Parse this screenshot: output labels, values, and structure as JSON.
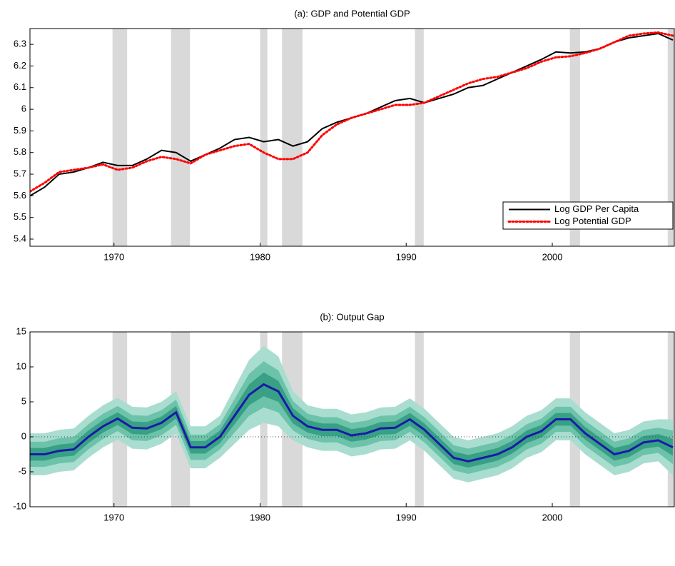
{
  "chart_data": [
    {
      "type": "line",
      "title": "(a): GDP and Potential GDP",
      "x": [
        1964.25,
        1965.25,
        1966.25,
        1967.25,
        1968.25,
        1969.25,
        1970.25,
        1971.25,
        1972.25,
        1973.25,
        1974.25,
        1975.25,
        1976.25,
        1977.25,
        1978.25,
        1979.25,
        1980.25,
        1981.25,
        1982.25,
        1983.25,
        1984.25,
        1985.25,
        1986.25,
        1987.25,
        1988.25,
        1989.25,
        1990.25,
        1991.25,
        1992.25,
        1993.25,
        1994.25,
        1995.25,
        1996.25,
        1997.25,
        1998.25,
        1999.25,
        2000.25,
        2001.25,
        2002.25,
        2003.25,
        2004.25,
        2005.25,
        2006.25,
        2007.25,
        2008.25
      ],
      "series": [
        {
          "name": "Log GDP Per Capita",
          "color": "#000000",
          "style": "solid",
          "values": [
            5.6,
            5.64,
            5.7,
            5.71,
            5.73,
            5.755,
            5.74,
            5.74,
            5.77,
            5.81,
            5.8,
            5.76,
            5.79,
            5.82,
            5.86,
            5.87,
            5.85,
            5.86,
            5.83,
            5.85,
            5.91,
            5.94,
            5.96,
            5.98,
            6.01,
            6.04,
            6.05,
            6.03,
            6.05,
            6.07,
            6.1,
            6.11,
            6.14,
            6.17,
            6.2,
            6.23,
            6.265,
            6.26,
            6.265,
            6.28,
            6.31,
            6.33,
            6.34,
            6.35,
            6.32
          ]
        },
        {
          "name": "Log Potential GDP",
          "color": "#ff0000",
          "style": "dotted",
          "values": [
            5.62,
            5.66,
            5.71,
            5.72,
            5.73,
            5.745,
            5.72,
            5.73,
            5.76,
            5.78,
            5.77,
            5.75,
            5.79,
            5.81,
            5.83,
            5.84,
            5.8,
            5.77,
            5.77,
            5.8,
            5.88,
            5.93,
            5.96,
            5.98,
            6.0,
            6.02,
            6.02,
            6.03,
            6.06,
            6.09,
            6.12,
            6.14,
            6.15,
            6.17,
            6.19,
            6.22,
            6.24,
            6.245,
            6.26,
            6.28,
            6.31,
            6.34,
            6.35,
            6.355,
            6.34
          ]
        }
      ],
      "recessions": [
        [
          1969.9,
          1970.9
        ],
        [
          1973.9,
          1975.2
        ],
        [
          1980.0,
          1980.5
        ],
        [
          1981.5,
          1982.9
        ],
        [
          1990.6,
          1991.2
        ],
        [
          2001.2,
          2001.9
        ],
        [
          2007.9,
          2009.5
        ]
      ],
      "recession_color": "#d9d9d9",
      "xlim": [
        1964.25,
        2008.35
      ],
      "xticks": [
        1970,
        1980,
        1990,
        2000
      ],
      "ylim": [
        5.367,
        6.373
      ],
      "yticks": [
        5.4,
        5.5,
        5.6,
        5.7,
        5.8,
        5.9,
        6,
        6.1,
        6.2,
        6.3
      ],
      "legend": "lower right"
    },
    {
      "type": "fan",
      "title": "(b): Output Gap",
      "x": [
        1964.25,
        1965.25,
        1966.25,
        1967.25,
        1968.25,
        1969.25,
        1970.25,
        1971.25,
        1972.25,
        1973.25,
        1974.25,
        1975.25,
        1976.25,
        1977.25,
        1978.25,
        1979.25,
        1980.25,
        1981.25,
        1982.25,
        1983.25,
        1984.25,
        1985.25,
        1986.25,
        1987.25,
        1988.25,
        1989.25,
        1990.25,
        1991.25,
        1992.25,
        1993.25,
        1994.25,
        1995.25,
        1996.25,
        1997.25,
        1998.25,
        1999.25,
        2000.25,
        2001.25,
        2002.25,
        2003.25,
        2004.25,
        2005.25,
        2006.25,
        2007.25,
        2008.25
      ],
      "bands": [
        {
          "color": "#a9ddd0",
          "lower": [
            -5.5,
            -5.5,
            -5.0,
            -4.8,
            -3.0,
            -1.5,
            -0.4,
            -1.7,
            -1.8,
            -1.0,
            0.5,
            -4.5,
            -4.5,
            -3.0,
            -1.0,
            1.0,
            2.0,
            1.5,
            -0.5,
            -1.5,
            -2.0,
            -2.0,
            -2.8,
            -2.5,
            -1.8,
            -1.7,
            -0.5,
            -2.0,
            -4.0,
            -6.0,
            -6.5,
            -6.0,
            -5.5,
            -4.5,
            -3.0,
            -2.2,
            -0.5,
            -0.5,
            -2.5,
            -4.0,
            -5.5,
            -5.0,
            -3.8,
            -3.5,
            -5.5
          ],
          "upper": [
            0.5,
            0.5,
            1.0,
            1.2,
            3.0,
            4.5,
            5.6,
            4.3,
            4.2,
            5.0,
            6.5,
            1.5,
            1.5,
            3.0,
            7.0,
            11.0,
            13.0,
            11.5,
            6.5,
            4.5,
            4.0,
            4.0,
            3.2,
            3.5,
            4.2,
            4.3,
            5.5,
            4.0,
            2.0,
            0.0,
            -0.5,
            0.0,
            0.5,
            1.5,
            3.0,
            3.8,
            5.5,
            5.5,
            3.5,
            2.0,
            0.5,
            1.0,
            2.2,
            2.5,
            2.5
          ]
        },
        {
          "color": "#6cc3aa",
          "lower": [
            -4.3,
            -4.3,
            -3.8,
            -3.6,
            -1.8,
            -0.3,
            0.8,
            -0.5,
            -0.6,
            0.2,
            1.7,
            -3.3,
            -3.3,
            -1.8,
            0.6,
            3.0,
            4.2,
            3.5,
            0.9,
            -0.3,
            -0.8,
            -0.8,
            -1.6,
            -1.3,
            -0.6,
            -0.5,
            0.7,
            -0.8,
            -2.8,
            -4.8,
            -5.3,
            -4.8,
            -4.3,
            -3.3,
            -1.8,
            -1.0,
            0.7,
            0.7,
            -1.3,
            -2.8,
            -4.3,
            -3.8,
            -2.6,
            -2.3,
            -3.9
          ],
          "upper": [
            -0.7,
            -0.7,
            -0.2,
            0.0,
            1.8,
            3.3,
            4.4,
            3.1,
            3.0,
            3.8,
            5.3,
            0.3,
            0.3,
            1.8,
            5.4,
            9.0,
            10.8,
            9.5,
            5.1,
            3.3,
            2.8,
            2.8,
            2.0,
            2.3,
            3.0,
            3.1,
            4.3,
            2.8,
            0.8,
            -1.2,
            -1.7,
            -1.2,
            -0.7,
            0.3,
            1.8,
            2.6,
            4.3,
            4.3,
            2.3,
            0.8,
            -0.7,
            -0.2,
            1.0,
            1.3,
            0.9
          ]
        },
        {
          "color": "#38a085",
          "lower": [
            -3.4,
            -3.4,
            -2.9,
            -2.7,
            -0.9,
            0.6,
            1.7,
            0.4,
            0.3,
            1.1,
            2.6,
            -2.4,
            -2.4,
            -0.9,
            1.8,
            4.5,
            5.8,
            5.0,
            1.9,
            0.6,
            0.1,
            0.1,
            -0.7,
            -0.4,
            0.3,
            0.4,
            1.6,
            0.1,
            -1.9,
            -3.9,
            -4.4,
            -3.9,
            -3.4,
            -2.4,
            -0.9,
            -0.1,
            1.6,
            1.6,
            -0.4,
            -1.9,
            -3.4,
            -2.9,
            -1.7,
            -1.4,
            -2.7
          ],
          "upper": [
            -1.6,
            -1.6,
            -1.1,
            -0.9,
            0.9,
            2.4,
            3.5,
            2.2,
            2.1,
            2.9,
            4.4,
            -0.6,
            -0.6,
            0.9,
            4.2,
            7.5,
            9.2,
            8.0,
            4.1,
            2.4,
            1.9,
            1.9,
            1.1,
            1.4,
            2.1,
            2.2,
            3.4,
            1.9,
            -0.1,
            -2.1,
            -2.6,
            -2.1,
            -1.6,
            -0.6,
            0.9,
            1.7,
            3.4,
            3.4,
            1.4,
            -0.1,
            -1.6,
            -1.1,
            0.1,
            0.4,
            -0.3
          ]
        }
      ],
      "median": {
        "color": "#1a1aa8",
        "values": [
          -2.5,
          -2.5,
          -2.0,
          -1.8,
          0.0,
          1.5,
          2.6,
          1.3,
          1.2,
          2.0,
          3.5,
          -1.5,
          -1.5,
          0.0,
          3.0,
          6.0,
          7.5,
          6.5,
          3.0,
          1.5,
          1.0,
          1.0,
          0.2,
          0.5,
          1.2,
          1.3,
          2.5,
          1.0,
          -1.0,
          -3.0,
          -3.5,
          -3.0,
          -2.5,
          -1.5,
          0.0,
          0.8,
          2.5,
          2.5,
          0.5,
          -1.0,
          -2.5,
          -2.0,
          -0.8,
          -0.5,
          -1.5
        ]
      },
      "hline": 0,
      "recessions": [
        [
          1969.9,
          1970.9
        ],
        [
          1973.9,
          1975.2
        ],
        [
          1980.0,
          1980.5
        ],
        [
          1981.5,
          1982.9
        ],
        [
          1990.6,
          1991.2
        ],
        [
          2001.2,
          2001.9
        ],
        [
          2007.9,
          2009.5
        ]
      ],
      "recession_color": "#d9d9d9",
      "xlim": [
        1964.25,
        2008.35
      ],
      "xticks": [
        1970,
        1980,
        1990,
        2000
      ],
      "ylim": [
        -10,
        15
      ],
      "yticks": [
        -10,
        -5,
        0,
        5,
        10,
        15
      ]
    }
  ]
}
